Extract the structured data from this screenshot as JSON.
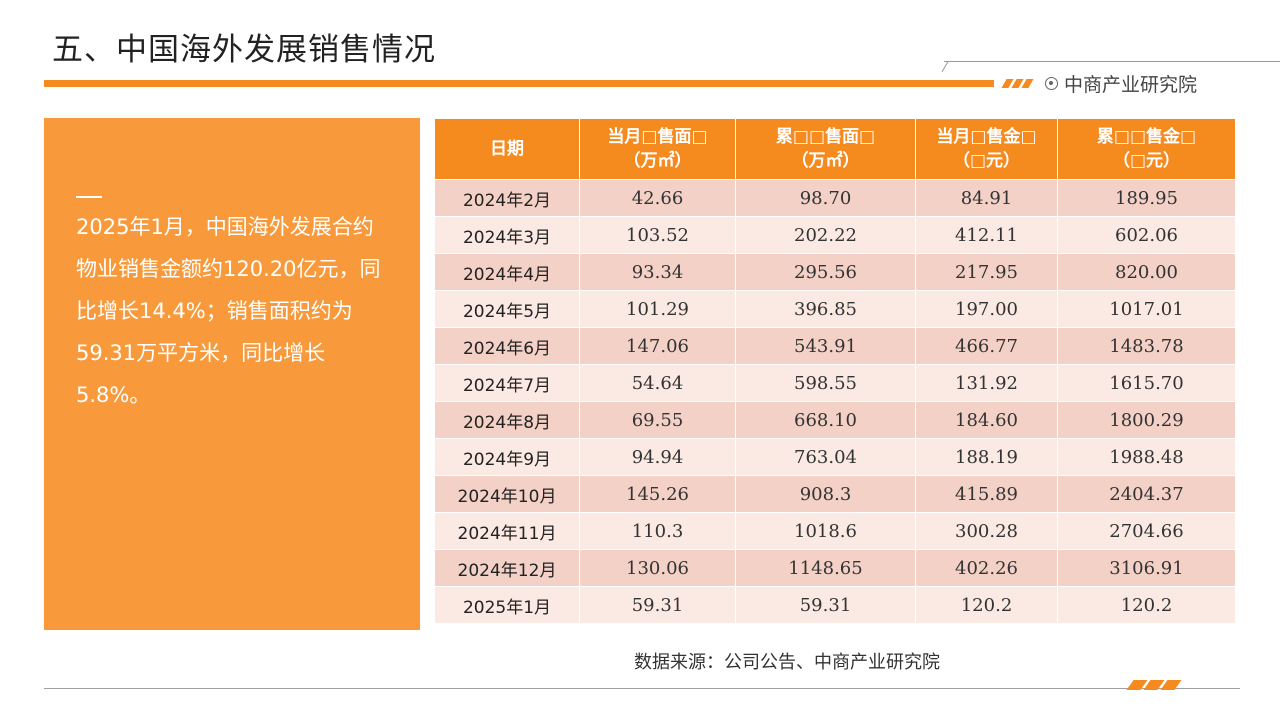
{
  "header": {
    "title": "五、中国海外发展销售情况",
    "brand": "中商产业研究院",
    "brand_icon": "circle-logo-icon",
    "accent_color": "#f58a1f"
  },
  "summary": {
    "text": "2025年1月，中国海外发展合约物业销售金额约120.20亿元，同比增长14.4%；销售面积约为59.31万平方米，同比增长5.8%。",
    "background_color": "#f89a3b"
  },
  "table": {
    "headers": [
      {
        "line1": "日期",
        "line2": ""
      },
      {
        "line1": "当月□售面□",
        "line2": "（万㎡）"
      },
      {
        "line1": "累□□售面□",
        "line2": "（万㎡）"
      },
      {
        "line1": "当月□售金□",
        "line2": "（□元）"
      },
      {
        "line1": "累□□售金□",
        "line2": "（□元）"
      }
    ],
    "rows": [
      [
        "2024年2月",
        "42.66",
        "98.70",
        "84.91",
        "189.95"
      ],
      [
        "2024年3月",
        "103.52",
        "202.22",
        "412.11",
        "602.06"
      ],
      [
        "2024年4月",
        "93.34",
        "295.56",
        "217.95",
        "820.00"
      ],
      [
        "2024年5月",
        "101.29",
        "396.85",
        "197.00",
        "1017.01"
      ],
      [
        "2024年6月",
        "147.06",
        "543.91",
        "466.77",
        "1483.78"
      ],
      [
        "2024年7月",
        "54.64",
        "598.55",
        "131.92",
        "1615.70"
      ],
      [
        "2024年8月",
        "69.55",
        "668.10",
        "184.60",
        "1800.29"
      ],
      [
        "2024年9月",
        "94.94",
        "763.04",
        "188.19",
        "1988.48"
      ],
      [
        "2024年10月",
        "145.26",
        "908.3",
        "415.89",
        "2404.37"
      ],
      [
        "2024年11月",
        "110.3",
        "1018.6",
        "300.28",
        "2704.66"
      ],
      [
        "2024年12月",
        "130.06",
        "1148.65",
        "402.26",
        "3106.91"
      ],
      [
        "2025年1月",
        "59.31",
        "59.31",
        "120.2",
        "120.2"
      ]
    ],
    "header_color": "#f58a1f",
    "row_colors": [
      "#f4d1c7",
      "#fbe9e3"
    ]
  },
  "footer": {
    "source": "数据来源：公司公告、中商产业研究院"
  }
}
